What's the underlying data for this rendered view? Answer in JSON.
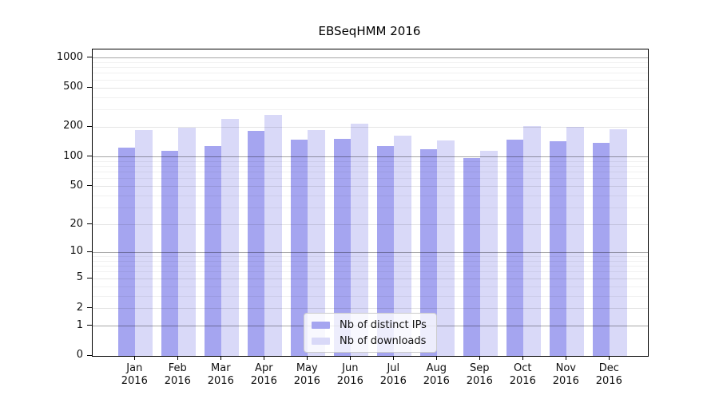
{
  "title": "EBSeqHMM 2016",
  "legend": {
    "items": [
      {
        "label": "Nb of distinct IPs",
        "color": "#a5a5f0"
      },
      {
        "label": "Nb of downloads",
        "color": "#d9d9f8"
      }
    ]
  },
  "y_axis": {
    "tick_values": [
      1000,
      500,
      200,
      100,
      50,
      20,
      10,
      5,
      2,
      1,
      0
    ],
    "tick_labels": [
      "1000",
      "500",
      "200",
      "100",
      "50",
      "20",
      "10",
      "5",
      "2",
      "1",
      "0"
    ]
  },
  "x_axis": {
    "months": [
      "Jan",
      "Feb",
      "Mar",
      "Apr",
      "May",
      "Jun",
      "Jul",
      "Aug",
      "Sep",
      "Oct",
      "Nov",
      "Dec"
    ],
    "year": "2016"
  },
  "chart_data": {
    "type": "bar",
    "title": "EBSeqHMM 2016",
    "categories": [
      "Jan 2016",
      "Feb 2016",
      "Mar 2016",
      "Apr 2016",
      "May 2016",
      "Jun 2016",
      "Jul 2016",
      "Aug 2016",
      "Sep 2016",
      "Oct 2016",
      "Nov 2016",
      "Dec 2016"
    ],
    "series": [
      {
        "name": "Nb of distinct IPs",
        "color": "#a5a5f0",
        "values": [
          125,
          115,
          128,
          184,
          150,
          154,
          128,
          120,
          97,
          149,
          144,
          140
        ]
      },
      {
        "name": "Nb of downloads",
        "color": "#d9d9f8",
        "values": [
          186,
          200,
          245,
          269,
          188,
          217,
          166,
          146,
          116,
          205,
          203,
          192
        ]
      }
    ],
    "xlabel": "",
    "ylabel": "",
    "yscale": "log1p",
    "ylim": [
      0,
      1220
    ],
    "y_ticks": [
      0,
      1,
      2,
      5,
      10,
      20,
      50,
      100,
      200,
      500,
      1000
    ],
    "grid": true,
    "legend_position": "lower-center-inside"
  }
}
